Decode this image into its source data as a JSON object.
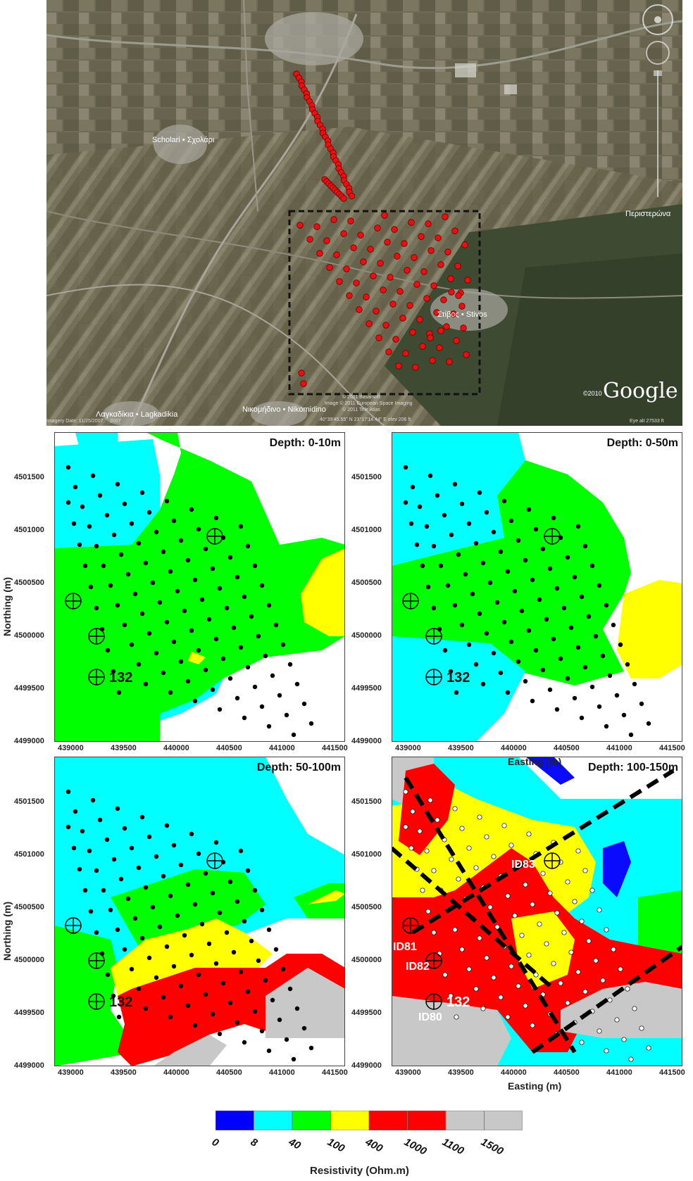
{
  "satellite": {
    "places": [
      {
        "id": "scholari",
        "label": "Scholari • Σχολάρι"
      },
      {
        "id": "peristerona",
        "label": "Περιστερώνα"
      },
      {
        "id": "stivos",
        "label": "Στίβος • Stivos"
      },
      {
        "id": "lagkadikia",
        "label": "Λαγκαδίκια • Lagkadikia"
      },
      {
        "id": "nikomidino",
        "label": "Νικομήδινο • Nikomidino"
      }
    ],
    "credits": [
      "© 2011 Basarsoft",
      "Image © 2011 European Space Imaging",
      "© 2011 Tele Atlas"
    ],
    "imagery_date": "Imagery Date: 11/25/2007",
    "year": "2007",
    "coords": "40°39'45.55\" N  23°17'14.44\" E  elev  206 ft",
    "eye_alt": "Eye alt   27533 ft",
    "copyright_year": "©2010",
    "brand": "Google"
  },
  "panels": [
    {
      "id": "p1",
      "title": "Depth: 0-10m"
    },
    {
      "id": "p2",
      "title": "Depth: 0-50m"
    },
    {
      "id": "p3",
      "title": "Depth: 50-100m"
    },
    {
      "id": "p4",
      "title": "Depth: 100-150m"
    }
  ],
  "axes": {
    "xlabel": "Easting (m)",
    "ylabel": "Northing (m)",
    "xticks": [
      "439000",
      "439500",
      "440000",
      "440500",
      "441000",
      "441500"
    ],
    "yticks": [
      "4501500",
      "4501000",
      "4500500",
      "4500000",
      "4499500",
      "4499000"
    ]
  },
  "well_label": "132",
  "id_labels": [
    "ID83",
    "ID81",
    "ID82",
    "ID80"
  ],
  "legend": {
    "title": "Resistivity (Ohm.m)",
    "ticks": [
      "0",
      "8",
      "40",
      "100",
      "400",
      "1000",
      "1100",
      "1500"
    ],
    "colors": [
      "#0000ff",
      "#00ffff",
      "#00ff00",
      "#ffff00",
      "#ff0000",
      "#ff0000",
      "#c8c8c8",
      "#c8c8c8"
    ]
  },
  "colors": {
    "blue": "#0a0aff",
    "cyan": "#00ffff",
    "green": "#00ff00",
    "yellow": "#ffff00",
    "red": "#ff0000",
    "gray": "#c8c8c8",
    "survey_point": "#e81010"
  }
}
